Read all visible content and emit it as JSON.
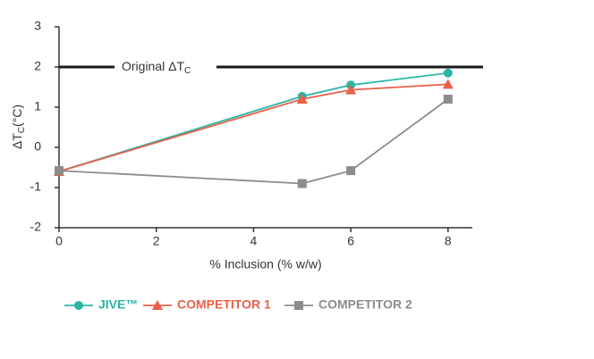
{
  "chart_data": {
    "type": "line",
    "x": [
      0,
      5,
      6,
      8
    ],
    "xlim": [
      0,
      8.5
    ],
    "xticks": [
      0,
      2,
      4,
      6,
      8
    ],
    "ylim": [
      -2,
      3
    ],
    "yticks": [
      -2,
      -1,
      0,
      1,
      2,
      3
    ],
    "xlabel": "% Inclusion (% w/w)",
    "ylabel": {
      "text": "ΔT",
      "subscript": "C",
      "suffix": "(°C)"
    },
    "reference_line": {
      "value": 2,
      "text": "Original ΔT",
      "subscript": "C",
      "color": "#1a1a1a"
    },
    "series": [
      {
        "name": "JIVE™",
        "color": "#2bb5a5",
        "marker": "circle",
        "values": [
          -0.6,
          1.27,
          1.55,
          1.85
        ]
      },
      {
        "name": "COMPETITOR 1",
        "color": "#e8604a",
        "marker": "triangle",
        "values": [
          -0.6,
          1.2,
          1.43,
          1.57
        ]
      },
      {
        "name": "COMPETITOR 2",
        "color": "#8c8c8c",
        "marker": "square",
        "values": [
          -0.58,
          -0.9,
          -0.58,
          1.2
        ]
      }
    ]
  }
}
